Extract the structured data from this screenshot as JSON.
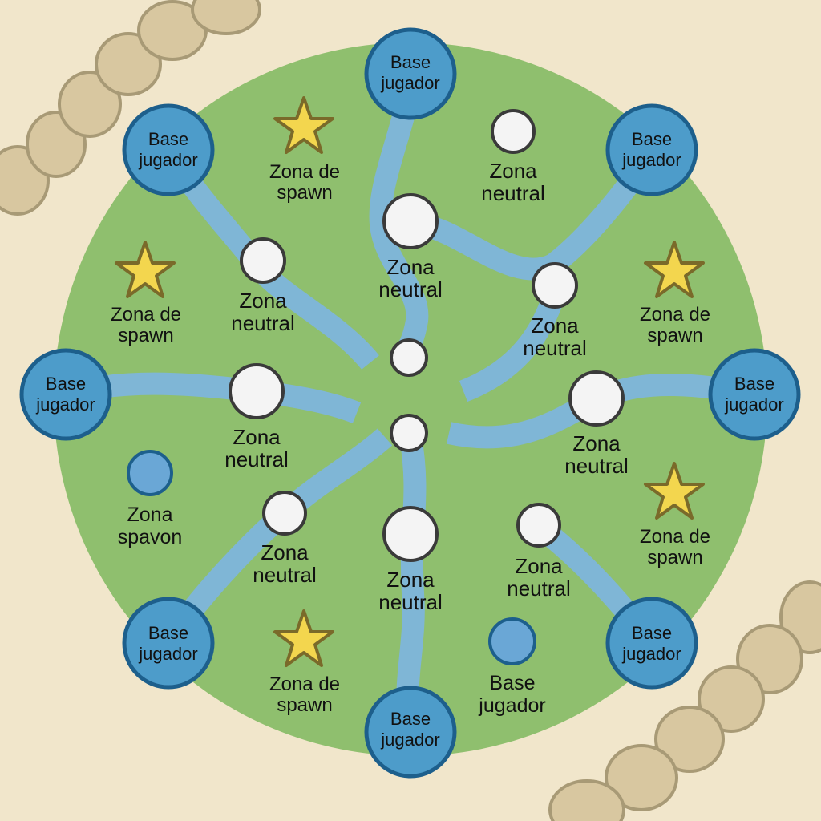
{
  "map": {
    "labels": {
      "base_line1": "Base",
      "base_line2": "jugador",
      "neutral_line1": "Zona",
      "neutral_line2": "neutral",
      "spawn_line1": "Zona de",
      "spawn_line2": "spawn",
      "spavon_line1": "Zona",
      "spavon_line2": "spavon"
    },
    "counts": {
      "player_bases": 8,
      "neutral_zones": 8,
      "unlabeled_neutral_nodes": 3,
      "spawn_zones": 5,
      "blue_points": 2
    },
    "colors": {
      "background": "#f1e6cb",
      "ground": "#8fbf6e",
      "river": "#7fb6d6",
      "base_fill": "#4d9cca",
      "base_stroke": "#1d5f8c",
      "neutral_fill": "#f4f4f4",
      "neutral_stroke": "#3a3a3a",
      "star_fill": "#f3d64e",
      "star_stroke": "#7a6a2a",
      "rocks": "#d8c7a0"
    }
  }
}
